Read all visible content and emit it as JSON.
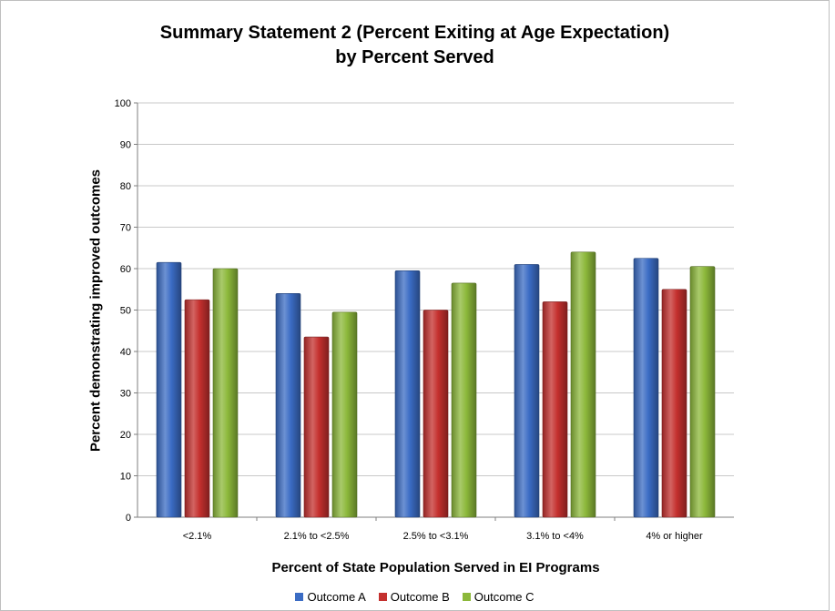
{
  "chart_data": {
    "type": "bar",
    "title_line1": "Summary Statement 2 (Percent Exiting at Age Expectation)",
    "title_line2": "by Percent Served",
    "xlabel": "Percent of State Population Served in EI Programs",
    "ylabel": "Percent demonstrating improved outcomes",
    "ylim": [
      0,
      100
    ],
    "yticks": [
      0,
      10,
      20,
      30,
      40,
      50,
      60,
      70,
      80,
      90,
      100
    ],
    "grid": true,
    "legend_position": "bottom",
    "categories": [
      "<2.1%",
      "2.1% to <2.5%",
      "2.5% to <3.1%",
      "3.1% to <4%",
      "4% or higher"
    ],
    "series": [
      {
        "name": "Outcome A",
        "color": "#3b6cc4",
        "values": [
          61.5,
          54,
          59.5,
          61,
          62.5
        ]
      },
      {
        "name": "Outcome B",
        "color": "#c4302e",
        "values": [
          52.5,
          43.5,
          50,
          52,
          55
        ]
      },
      {
        "name": "Outcome C",
        "color": "#8cb83a",
        "values": [
          60,
          49.5,
          56.5,
          64,
          60.5
        ]
      }
    ]
  }
}
